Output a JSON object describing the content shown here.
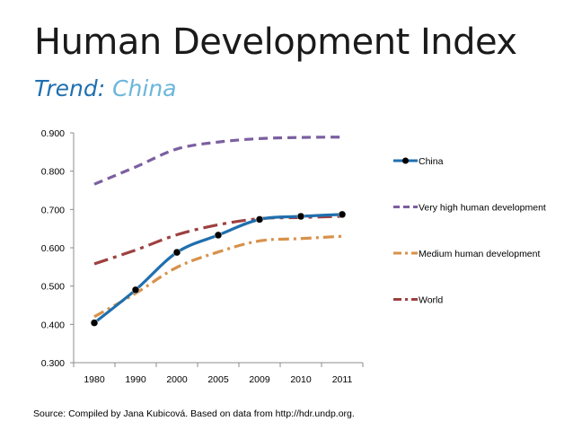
{
  "title": "Human Development Index",
  "subtitle": {
    "label": "Trend:",
    "value": "China"
  },
  "source": "Source: Compiled by Jana Kubicová. Based on data from http://hdr.undp.org.",
  "chart_data": {
    "type": "line",
    "categories": [
      "1980",
      "1990",
      "2000",
      "2005",
      "2009",
      "2010",
      "2011"
    ],
    "ylim": [
      0.3,
      0.9
    ],
    "yticks": [
      "0.300",
      "0.400",
      "0.500",
      "0.600",
      "0.700",
      "0.800",
      "0.900"
    ],
    "legend_position": "right",
    "grid": false,
    "series": [
      {
        "name": "China",
        "color": "#1f6fae",
        "dash": "solid",
        "markers": true,
        "values": [
          0.404,
          0.49,
          0.588,
          0.633,
          0.674,
          0.682,
          0.687
        ]
      },
      {
        "name": "Very high human development",
        "color": "#7b5fa0",
        "dash": "dash",
        "values": [
          0.766,
          0.811,
          0.858,
          0.876,
          0.885,
          0.888,
          0.889
        ]
      },
      {
        "name": "Medium human development",
        "color": "#d8914a",
        "dash": "dashdot",
        "values": [
          0.42,
          0.481,
          0.549,
          0.589,
          0.618,
          0.624,
          0.63
        ]
      },
      {
        "name": "World",
        "color": "#9e4040",
        "dash": "longdashdot",
        "values": [
          0.558,
          0.594,
          0.634,
          0.66,
          0.676,
          0.679,
          0.682
        ]
      }
    ]
  }
}
